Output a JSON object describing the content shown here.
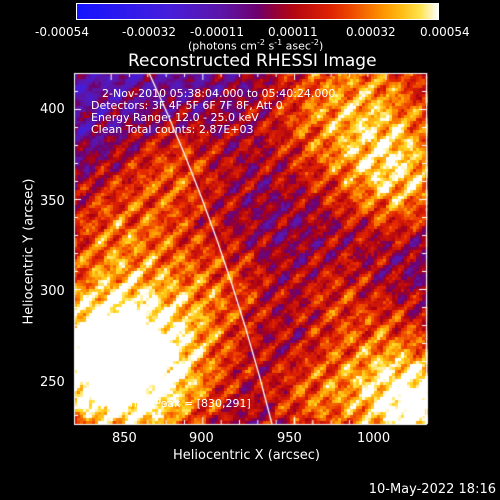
{
  "colorbar": {
    "tick_labels": [
      "-0.00054",
      "-0.00032",
      "-0.00011",
      "0.00011",
      "0.00032",
      "0.00054"
    ],
    "unit_label": "(photons cm",
    "unit_exp1": "-2",
    "unit_mid": " s",
    "unit_exp2": "-1",
    "unit_end": " asec",
    "unit_exp3": "-2",
    "unit_close": ")"
  },
  "chart_data": {
    "type": "heatmap",
    "title": "Reconstructed RHESSI Image",
    "xlabel": "Heliocentric X (arcsec)",
    "ylabel": "Heliocentric Y (arcsec)",
    "xlim": [
      830,
      1022
    ],
    "ylim": [
      225,
      420
    ],
    "x_ticks": [
      850,
      900,
      950,
      1000
    ],
    "y_ticks": [
      250,
      300,
      350,
      400
    ],
    "clim": [
      -0.00054,
      0.00054
    ],
    "peak": [
      830,
      291
    ],
    "annotations": [
      "2-Nov-2010 05:38:04.000 to 05:40:24.000",
      "Detectors: 3F 4F 5F 6F 7F 8F, Att 0",
      "Energy Range: 12.0 - 25.0 keV",
      "Clean     Total counts: 2.87E+03"
    ],
    "peak_label": "Position of Peak = [830,291]"
  },
  "timestamp": "10-May-2022 18:16"
}
